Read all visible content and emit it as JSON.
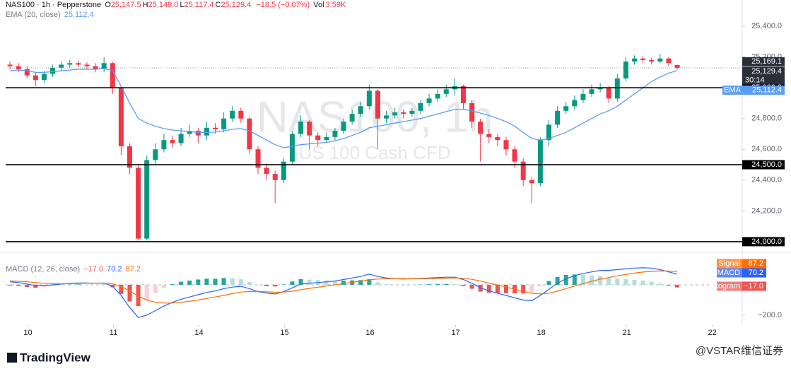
{
  "chart_data": [
    {
      "type": "candlestick",
      "title": "NAS100 · 1h · Pepperstone",
      "ohlc_legend": [
        {
          "label": "O",
          "value": "25,147.5"
        },
        {
          "label": "H",
          "value": "25,149.0"
        },
        {
          "label": "L",
          "value": "25,117.4"
        },
        {
          "label": "C",
          "value": "25,129.4"
        }
      ],
      "change": "−18.5 (−0.07%)",
      "volume": {
        "label": "Vol",
        "value": "3.59K"
      },
      "watermark": "NAS100, 1h",
      "watermark_subtitle": "US 100 Cash CFD",
      "up_color": "#089981",
      "down_color": "#f23645",
      "xlim": [
        -0.5,
        85.6
      ],
      "xticks": [
        {
          "value": 2.1,
          "label": "10"
        },
        {
          "value": 12.1,
          "label": "11"
        },
        {
          "value": 22.1,
          "label": "14"
        },
        {
          "value": 32.1,
          "label": "15"
        },
        {
          "value": 42.1,
          "label": "16"
        },
        {
          "value": 52.1,
          "label": "17"
        },
        {
          "value": 62.1,
          "label": "18"
        },
        {
          "value": 72.1,
          "label": "21"
        },
        {
          "value": 82.1,
          "label": "22"
        }
      ],
      "ylim": [
        23940,
        25570
      ],
      "yticks": [
        {
          "value": 25400,
          "label": "25,400.0"
        },
        {
          "value": 25200,
          "label": "25,200.0"
        },
        {
          "value": 24800,
          "label": "24,800.0"
        },
        {
          "value": 24600,
          "label": "24,600.0"
        },
        {
          "value": 24400,
          "label": "24,400.0"
        },
        {
          "value": 24200,
          "label": "24,200.0"
        }
      ],
      "open": [
        25150,
        25140,
        25120,
        25080,
        25050,
        25090,
        25130,
        25150,
        25160,
        25150,
        25140,
        25120,
        25160,
        25000,
        24620,
        24480,
        24020,
        24530,
        24600,
        24660,
        24640,
        24700,
        24720,
        24690,
        24740,
        24730,
        24800,
        24850,
        24800,
        24600,
        24480,
        24440,
        24400,
        24520,
        24700,
        24780,
        24690,
        24660,
        24680,
        24720,
        24780,
        24830,
        24880,
        24980,
        24800,
        24820,
        24840,
        24830,
        24850,
        24900,
        24930,
        24960,
        24990,
        25010,
        24900,
        24780,
        24700,
        24680,
        24660,
        24600,
        24520,
        24400,
        24380,
        24660,
        24760,
        24850,
        24880,
        24920,
        24960,
        24990,
        25000,
        24930,
        25060,
        25170,
        25190,
        25180,
        25170,
        25190,
        25147.5
      ],
      "high": [
        25170,
        25160,
        25140,
        25100,
        25110,
        25150,
        25170,
        25180,
        25175,
        25165,
        25160,
        25200,
        25170,
        25010,
        24640,
        24500,
        24560,
        24640,
        24700,
        24690,
        24740,
        24760,
        24740,
        24780,
        24770,
        24840,
        24880,
        24870,
        24810,
        24620,
        24510,
        24460,
        24540,
        24720,
        24820,
        24790,
        24710,
        24710,
        24740,
        24800,
        24860,
        24910,
        25020,
        24990,
        24850,
        24870,
        24860,
        24870,
        24920,
        24960,
        24990,
        25020,
        25060,
        25020,
        24920,
        24800,
        24730,
        24700,
        24680,
        24620,
        24540,
        24420,
        24680,
        24790,
        24880,
        24910,
        24950,
        24990,
        25020,
        25030,
        25010,
        25090,
        25200,
        25210,
        25205,
        25195,
        25220,
        25200,
        25149
      ],
      "low": [
        25120,
        25100,
        25060,
        25010,
        25030,
        25070,
        25110,
        25130,
        25135,
        25120,
        25100,
        25100,
        24960,
        24560,
        24440,
        24010,
        24010,
        24500,
        24580,
        24610,
        24620,
        24680,
        24640,
        24660,
        24700,
        24710,
        24780,
        24770,
        24570,
        24440,
        24400,
        24250,
        24380,
        24500,
        24680,
        24600,
        24620,
        24640,
        24660,
        24700,
        24760,
        24810,
        24860,
        24600,
        24770,
        24800,
        24800,
        24810,
        24830,
        24880,
        24910,
        24940,
        24950,
        24860,
        24740,
        24520,
        24640,
        24620,
        24560,
        24480,
        24360,
        24250,
        24360,
        24620,
        24740,
        24830,
        24860,
        24900,
        24940,
        24970,
        24900,
        24910,
        25040,
        25150,
        25160,
        25150,
        25160,
        25140,
        25117.4
      ],
      "close": [
        25140,
        25120,
        25080,
        25050,
        25090,
        25130,
        25150,
        25160,
        25150,
        25140,
        25120,
        25160,
        25000,
        24620,
        24480,
        24020,
        24530,
        24600,
        24660,
        24640,
        24700,
        24720,
        24690,
        24740,
        24730,
        24800,
        24850,
        24800,
        24600,
        24480,
        24440,
        24400,
        24520,
        24700,
        24780,
        24690,
        24660,
        24680,
        24720,
        24780,
        24830,
        24880,
        24980,
        24800,
        24820,
        24840,
        24830,
        24850,
        24900,
        24930,
        24960,
        24990,
        25010,
        24900,
        24780,
        24700,
        24680,
        24660,
        24600,
        24520,
        24400,
        24380,
        24660,
        24760,
        24850,
        24880,
        24920,
        24960,
        24990,
        25000,
        24930,
        25060,
        25170,
        25190,
        25180,
        25170,
        25190,
        25160,
        25129.4
      ],
      "series": [
        {
          "name": "EMA (20, close)",
          "tag": "EMA",
          "color": "#5b9cf6",
          "value_label": "25,112.4",
          "values": [
            25110,
            25115,
            25110,
            25100,
            25100,
            25105,
            25110,
            25115,
            25120,
            25120,
            25120,
            25125,
            25110,
            25010,
            24900,
            24800,
            24770,
            24750,
            24735,
            24725,
            24720,
            24715,
            24710,
            24710,
            24712,
            24720,
            24730,
            24735,
            24720,
            24690,
            24660,
            24630,
            24610,
            24620,
            24630,
            24635,
            24640,
            24645,
            24655,
            24670,
            24690,
            24710,
            24740,
            24750,
            24760,
            24770,
            24780,
            24790,
            24800,
            24815,
            24830,
            24845,
            24860,
            24860,
            24850,
            24835,
            24820,
            24800,
            24780,
            24750,
            24710,
            24670,
            24660,
            24670,
            24690,
            24710,
            24740,
            24770,
            24800,
            24830,
            24850,
            24880,
            24920,
            24960,
            25000,
            25040,
            25070,
            25095,
            25112.4
          ]
        }
      ],
      "levels": [
        {
          "value": 25000,
          "label": "25,000.0"
        },
        {
          "value": 24500,
          "label": "24,500.0"
        },
        {
          "value": 24000,
          "label": "24,000.0"
        }
      ],
      "high_tag": {
        "value": 25169.1,
        "label": "25,169.1"
      },
      "last_tag": {
        "value": 25129.4,
        "label": "25,129.4",
        "countdown": "30:14"
      }
    },
    {
      "type": "macd",
      "title": "MACD (12, 26, close)",
      "xlim": [
        -0.5,
        85.6
      ],
      "ylim": [
        -256,
        200
      ],
      "yticks": [
        {
          "value": -200,
          "label": "−200.0"
        }
      ],
      "histogram": {
        "name": "Histogram",
        "value_label": "−17.0",
        "colors": [
          "#26a69a",
          "#b2dfdb",
          "#ef5350",
          "#ffcdd2"
        ],
        "values": [
          -5,
          -8,
          -15,
          -20,
          -15,
          -8,
          -2,
          2,
          3,
          2,
          0,
          2,
          -16,
          -60,
          -110,
          -140,
          -100,
          -55,
          -20,
          5,
          20,
          28,
          35,
          40,
          40,
          45,
          43,
          38,
          19,
          -1,
          -9,
          -11,
          3,
          22,
          37,
          34,
          31,
          28,
          25,
          27,
          29,
          31,
          37,
          17,
          5,
          0,
          -2,
          0,
          2,
          4,
          6,
          6,
          5,
          -8,
          -26,
          -45,
          -52,
          -54,
          -55,
          -56,
          -57,
          -49,
          -10,
          25,
          52,
          65,
          68,
          67,
          62,
          58,
          47,
          41,
          37,
          33,
          28,
          21,
          9,
          -5,
          -17.0
        ]
      },
      "series": [
        {
          "name": "MACD",
          "color": "#2962ff",
          "value_label": "70.2",
          "values": [
            20,
            15,
            5,
            -5,
            -5,
            0,
            5,
            10,
            12,
            12,
            10,
            12,
            -10,
            -70,
            -150,
            -215,
            -200,
            -170,
            -140,
            -115,
            -95,
            -80,
            -65,
            -50,
            -40,
            -25,
            -15,
            -10,
            -25,
            -45,
            -55,
            -60,
            -45,
            -20,
            5,
            10,
            15,
            20,
            25,
            35,
            45,
            55,
            70,
            55,
            45,
            40,
            38,
            40,
            42,
            45,
            48,
            50,
            50,
            35,
            10,
            -20,
            -40,
            -55,
            -70,
            -85,
            -100,
            -105,
            -70,
            -30,
            10,
            40,
            60,
            75,
            85,
            95,
            95,
            100,
            105,
            110,
            112,
            110,
            100,
            85,
            70.2
          ]
        },
        {
          "name": "Signal",
          "color": "#ff6d00",
          "value_label": "87.2",
          "values": [
            25,
            23,
            20,
            15,
            10,
            8,
            7,
            8,
            9,
            10,
            10,
            10,
            6,
            -10,
            -40,
            -75,
            -100,
            -115,
            -120,
            -120,
            -115,
            -108,
            -100,
            -90,
            -80,
            -70,
            -58,
            -48,
            -44,
            -44,
            -46,
            -49,
            -48,
            -42,
            -32,
            -24,
            -16,
            -8,
            0,
            8,
            16,
            24,
            33,
            38,
            40,
            40,
            40,
            40,
            40,
            41,
            42,
            44,
            45,
            43,
            36,
            25,
            12,
            -1,
            -15,
            -29,
            -43,
            -56,
            -60,
            -55,
            -42,
            -25,
            -8,
            8,
            23,
            37,
            48,
            59,
            68,
            77,
            84,
            89,
            91,
            90,
            87.2
          ]
        }
      ]
    }
  ],
  "footer": {
    "logo": "TradingView",
    "credit": "@VSTAR维信证券"
  }
}
